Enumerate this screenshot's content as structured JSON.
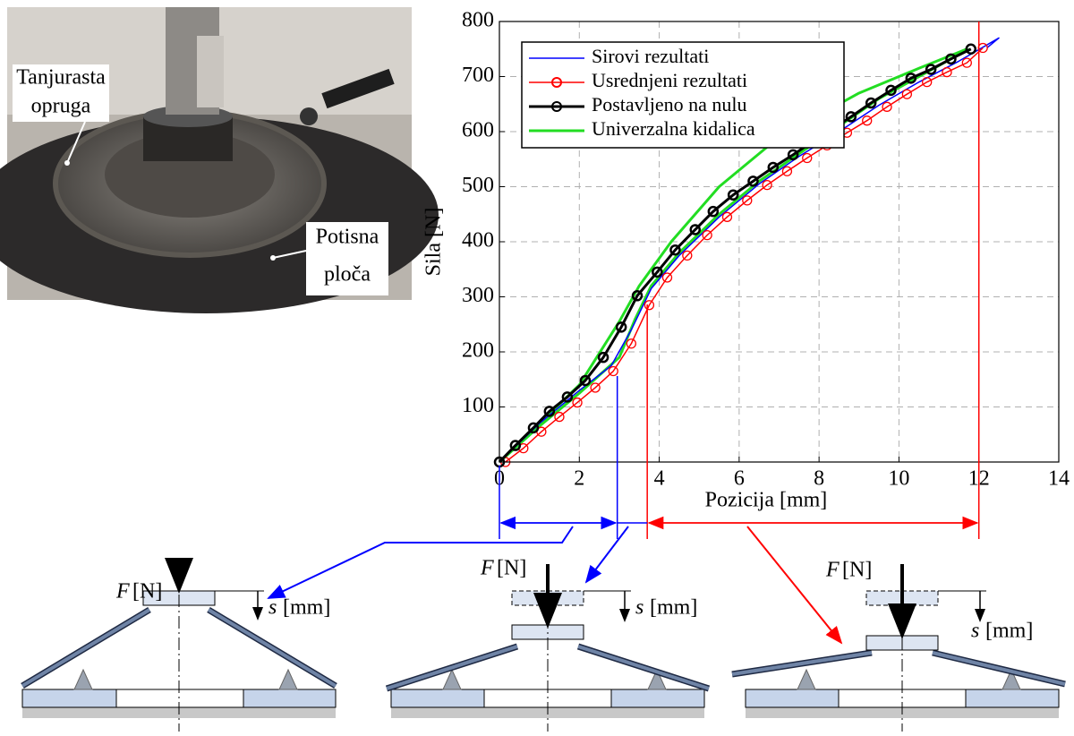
{
  "chart_data": {
    "type": "line",
    "x_label": "Pozicija [mm]",
    "y_label": "Sila [N]",
    "xlim": [
      0,
      14
    ],
    "xticks": [
      0,
      2,
      4,
      6,
      8,
      10,
      12,
      14
    ],
    "ylim": [
      0,
      800
    ],
    "yticks": [
      100,
      200,
      300,
      400,
      500,
      600,
      700,
      800
    ],
    "grid": true,
    "legend": "upper left",
    "series": [
      {
        "name": "Sirovi rezultati",
        "color": "#0000ff",
        "markers": false,
        "linewidth": 1.5,
        "x": [
          0,
          1,
          2,
          2.8,
          3.3,
          3.8,
          4.5,
          5.5,
          6.5,
          7.5,
          8.5,
          9.5,
          10.5,
          11.5,
          12.5,
          12.2
        ],
        "values": [
          0,
          70,
          130,
          175,
          240,
          315,
          375,
          445,
          505,
          555,
          600,
          648,
          690,
          728,
          770,
          752
        ]
      },
      {
        "name": "Usrednjeni rezultati",
        "color": "#ff0000",
        "markers": true,
        "linewidth": 1.5,
        "x": [
          0.15,
          0.6,
          1.05,
          1.5,
          1.95,
          2.4,
          2.85,
          3.3,
          3.75,
          4.2,
          4.7,
          5.2,
          5.7,
          6.2,
          6.7,
          7.2,
          7.7,
          8.2,
          8.7,
          9.2,
          9.7,
          10.2,
          10.7,
          11.2,
          11.7,
          12.1
        ],
        "values": [
          0,
          25,
          55,
          82,
          108,
          135,
          165,
          215,
          285,
          335,
          375,
          412,
          445,
          475,
          503,
          528,
          552,
          575,
          598,
          620,
          645,
          668,
          690,
          708,
          725,
          752
        ]
      },
      {
        "name": "Postavljeno na nulu",
        "color": "#000000",
        "markers": true,
        "linewidth": 3,
        "x": [
          0,
          0.4,
          0.85,
          1.25,
          1.7,
          2.15,
          2.6,
          3.05,
          3.45,
          3.95,
          4.4,
          4.9,
          5.35,
          5.85,
          6.35,
          6.85,
          7.35,
          7.8,
          8.3,
          8.8,
          9.3,
          9.8,
          10.3,
          10.8,
          11.3,
          11.8
        ],
        "values": [
          0,
          30,
          62,
          92,
          118,
          148,
          190,
          245,
          302,
          345,
          385,
          422,
          455,
          485,
          510,
          535,
          558,
          580,
          603,
          627,
          652,
          675,
          697,
          713,
          732,
          750
        ]
      },
      {
        "name": "Univerzalna kidalica",
        "color": "#22dd22",
        "markers": false,
        "linewidth": 3,
        "x": [
          0,
          1,
          2,
          3,
          3.4,
          3.8,
          4.5,
          5.5,
          6.5,
          7.5,
          8.5,
          9.5,
          10.5,
          11.5,
          11.7,
          10.5,
          9,
          7,
          5.5,
          4.3,
          3.5,
          3,
          2,
          1,
          0
        ],
        "values": [
          0,
          65,
          125,
          190,
          260,
          320,
          380,
          450,
          510,
          560,
          610,
          660,
          700,
          740,
          750,
          715,
          670,
          590,
          500,
          400,
          320,
          255,
          140,
          70,
          0
        ]
      }
    ],
    "ranges": [
      {
        "color": "#0000ff",
        "x": [
          0,
          2.95
        ]
      },
      {
        "color": "#ff0000",
        "x": [
          3.7,
          12
        ]
      }
    ]
  },
  "photo": {
    "labels": [
      "Tanjurasta",
      "opruga",
      "Potisna",
      "ploča"
    ]
  },
  "diagrams": [
    {
      "force_symbol": "F",
      "force_unit": "[N]",
      "disp_symbol": "s",
      "disp_unit": "[mm]"
    },
    {
      "force_symbol": "F",
      "force_unit": "[N]",
      "disp_symbol": "s",
      "disp_unit": "[mm]"
    },
    {
      "force_symbol": "F",
      "force_unit": "[N]",
      "disp_symbol": "s",
      "disp_unit": "[mm]"
    }
  ]
}
